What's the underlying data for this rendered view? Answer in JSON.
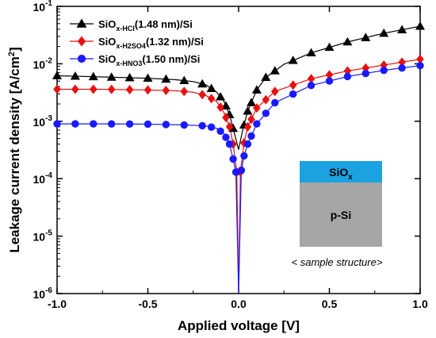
{
  "chart_data": {
    "type": "scatter",
    "xlabel": "Applied voltage [V]",
    "ylabel": "Leakage current density [A/cm",
    "ylabel_sup": "2",
    "ylabel_end": "]",
    "xlim": [
      -1.0,
      1.0
    ],
    "ylim": [
      1e-06,
      0.1
    ],
    "yscale": "log",
    "x_ticks": [
      -1.0,
      -0.5,
      0.0,
      0.5,
      1.0
    ],
    "x_tick_labels": [
      "-1.0",
      "-0.5",
      "0.0",
      "0.5",
      "1.0"
    ],
    "y_ticks": [
      1e-06,
      1e-05,
      0.0001,
      0.001,
      0.01,
      0.1
    ],
    "y_tick_labels": [
      {
        "base": "10",
        "exp": "-6"
      },
      {
        "base": "10",
        "exp": "-5"
      },
      {
        "base": "10",
        "exp": "-4"
      },
      {
        "base": "10",
        "exp": "-3"
      },
      {
        "base": "10",
        "exp": "-2"
      },
      {
        "base": "10",
        "exp": "-1"
      }
    ],
    "grid": false,
    "legend_position": "top-left",
    "series": [
      {
        "label_main": "SiO",
        "label_sub": "x-HCl",
        "label_rest": "(1.48 nm)/Si",
        "marker": "triangle",
        "color": "#000000",
        "points": [
          [
            -1.0,
            0.0062
          ],
          [
            -0.75,
            0.0059
          ],
          [
            -0.5,
            0.0056
          ],
          [
            -0.35,
            0.0053
          ],
          [
            -0.25,
            0.0049
          ],
          [
            -0.18,
            0.0043
          ],
          [
            -0.12,
            0.0032
          ],
          [
            -0.08,
            0.0022
          ],
          [
            -0.05,
            0.0013
          ],
          [
            -0.03,
            0.00075
          ],
          [
            0.0,
            0.00032
          ],
          [
            0.02,
            0.00065
          ],
          [
            0.05,
            0.0015
          ],
          [
            0.1,
            0.0035
          ],
          [
            0.15,
            0.0058
          ],
          [
            0.25,
            0.0098
          ],
          [
            0.4,
            0.0155
          ],
          [
            0.6,
            0.024
          ],
          [
            0.8,
            0.034
          ],
          [
            1.0,
            0.045
          ]
        ],
        "markers_at": [
          -1.0,
          -0.9,
          -0.8,
          -0.7,
          -0.6,
          -0.5,
          -0.4,
          -0.3,
          -0.2,
          -0.15,
          -0.1,
          -0.07,
          -0.05,
          -0.03,
          0.03,
          0.05,
          0.07,
          0.1,
          0.15,
          0.2,
          0.3,
          0.4,
          0.5,
          0.6,
          0.7,
          0.8,
          0.9,
          1.0
        ]
      },
      {
        "label_main": "SiO",
        "label_sub": "x-H2SO4",
        "label_rest": "(1.32 nm)/Si",
        "marker": "diamond",
        "color": "#e81010",
        "points": [
          [
            -1.0,
            0.0036
          ],
          [
            -0.75,
            0.0036
          ],
          [
            -0.5,
            0.0035
          ],
          [
            -0.35,
            0.0034
          ],
          [
            -0.25,
            0.0032
          ],
          [
            -0.18,
            0.0028
          ],
          [
            -0.12,
            0.0022
          ],
          [
            -0.08,
            0.0014
          ],
          [
            -0.05,
            0.0008
          ],
          [
            -0.03,
            0.0004
          ],
          [
            -0.01,
            0.00013
          ],
          [
            0.0,
            1e-06
          ],
          [
            0.01,
            0.00013
          ],
          [
            0.03,
            0.00042
          ],
          [
            0.05,
            0.0008
          ],
          [
            0.1,
            0.0017
          ],
          [
            0.2,
            0.0033
          ],
          [
            0.4,
            0.0055
          ],
          [
            0.6,
            0.0075
          ],
          [
            0.8,
            0.0095
          ],
          [
            1.0,
            0.012
          ]
        ],
        "markers_at": [
          -1.0,
          -0.9,
          -0.8,
          -0.7,
          -0.6,
          -0.5,
          -0.4,
          -0.3,
          -0.2,
          -0.15,
          -0.1,
          -0.07,
          -0.05,
          -0.03,
          -0.01,
          0.01,
          0.03,
          0.05,
          0.07,
          0.1,
          0.15,
          0.2,
          0.3,
          0.4,
          0.5,
          0.6,
          0.7,
          0.8,
          0.9,
          1.0
        ]
      },
      {
        "label_main": "SiO",
        "label_sub": "x-HNO3",
        "label_rest": "(1.50 nm)/Si",
        "marker": "circle",
        "color": "#1a1aff",
        "points": [
          [
            -1.0,
            0.0009
          ],
          [
            -0.75,
            0.0009
          ],
          [
            -0.5,
            0.00089
          ],
          [
            -0.35,
            0.00087
          ],
          [
            -0.25,
            0.00085
          ],
          [
            -0.18,
            0.00083
          ],
          [
            -0.12,
            0.00075
          ],
          [
            -0.08,
            0.0006
          ],
          [
            -0.05,
            0.0004
          ],
          [
            -0.03,
            0.00022
          ],
          [
            -0.015,
            0.00013
          ],
          [
            0.0,
            1e-06
          ],
          [
            0.015,
            0.00014
          ],
          [
            0.03,
            0.00025
          ],
          [
            0.05,
            0.0004
          ],
          [
            0.1,
            0.0009
          ],
          [
            0.2,
            0.0021
          ],
          [
            0.4,
            0.0042
          ],
          [
            0.6,
            0.006
          ],
          [
            0.8,
            0.0077
          ],
          [
            1.0,
            0.0093
          ]
        ],
        "markers_at": [
          -1.0,
          -0.9,
          -0.8,
          -0.7,
          -0.6,
          -0.5,
          -0.4,
          -0.3,
          -0.2,
          -0.15,
          -0.1,
          -0.07,
          -0.05,
          -0.03,
          -0.015,
          0.015,
          0.03,
          0.05,
          0.07,
          0.1,
          0.15,
          0.2,
          0.3,
          0.4,
          0.5,
          0.6,
          0.7,
          0.8,
          0.9,
          1.0
        ]
      }
    ],
    "inset": {
      "top_label_main": "SiO",
      "top_label_sub": "x",
      "bottom_label": "p-Si",
      "top_color": "#1aa3e0",
      "bottom_color": "#a6a6a6",
      "caption": "< sample structure>"
    }
  }
}
